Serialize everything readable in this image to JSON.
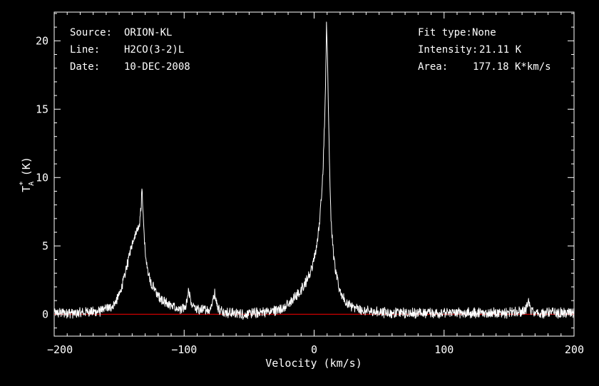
{
  "chart_data": {
    "type": "line",
    "xlabel": "Velocity (km/s)",
    "ylabel_main": "T",
    "ylabel_sub": "A",
    "ylabel_sup": "*",
    "ylabel_unit": "(K)",
    "xlim": [
      -200,
      200
    ],
    "ylim": [
      -1.6,
      22.1
    ],
    "x_ticks": [
      -200,
      -100,
      0,
      100,
      200
    ],
    "x_tick_labels": [
      "−200",
      "−100",
      "0",
      "100",
      "200"
    ],
    "y_ticks": [
      0,
      5,
      10,
      15,
      20
    ],
    "y_tick_labels": [
      "0",
      "5",
      "10",
      "15",
      "20"
    ],
    "x_minor_step": 10,
    "y_minor_step": 1,
    "grid": false,
    "baseline": 0,
    "colors": {
      "background": "#000000",
      "axes": "#ffffff",
      "spectrum": "#ffffff",
      "baseline": "#ff0000",
      "text": "#ffffff"
    },
    "info_left": [
      {
        "label": "Source:",
        "value": "ORION-KL"
      },
      {
        "label": "Line:",
        "value": "H2CO(3-2)L"
      },
      {
        "label": "Date:",
        "value": "10-DEC-2008"
      }
    ],
    "info_right": [
      {
        "label": "Fit type:",
        "value": "None"
      },
      {
        "label": "Intensity:",
        "value": "21.11 K"
      },
      {
        "label": "Area:",
        "value": "177.18 K*km/s"
      }
    ],
    "series": [
      {
        "x": [
          -200,
          -180,
          -165,
          -155,
          -150,
          -147,
          -144,
          -141,
          -139,
          -137,
          -135,
          -134,
          -133,
          -132.5,
          -132,
          -131,
          -130,
          -128,
          -125,
          -122,
          -119,
          -116,
          -113,
          -110,
          -106,
          -102,
          -99,
          -97.5,
          -96.5,
          -95,
          -92,
          -89,
          -86,
          -83,
          -80,
          -78,
          -76.5,
          -75.5,
          -74.5,
          -73,
          -71,
          -68,
          -65,
          -55,
          -45,
          -35,
          -30,
          -25,
          -20,
          -15,
          -10,
          -5,
          -2,
          0,
          2,
          4,
          5.5,
          7,
          8,
          9,
          9.5,
          10,
          11,
          12,
          13,
          15,
          17,
          19,
          21,
          23,
          26,
          30,
          35,
          42,
          50,
          60,
          70,
          80,
          90,
          100,
          110,
          120,
          130,
          140,
          150,
          155,
          160,
          163,
          164,
          165,
          166,
          167,
          170,
          180,
          190,
          200
        ],
        "y": [
          0.1,
          0.1,
          0.2,
          0.6,
          1.4,
          2.3,
          3.5,
          4.8,
          5.6,
          6.1,
          6.4,
          6.9,
          8.1,
          9.0,
          8.2,
          6.3,
          4.5,
          3.0,
          2.2,
          1.7,
          1.3,
          1.0,
          0.8,
          0.6,
          0.45,
          0.3,
          0.5,
          1.0,
          1.7,
          0.9,
          0.4,
          0.3,
          0.3,
          0.3,
          0.45,
          0.9,
          1.6,
          1.3,
          0.7,
          0.35,
          0.25,
          0.15,
          0.1,
          0.0,
          0.1,
          0.2,
          0.3,
          0.45,
          0.7,
          1.2,
          1.8,
          2.6,
          3.3,
          4.0,
          5.0,
          6.5,
          8.5,
          11.0,
          14.0,
          18.0,
          21.11,
          20.0,
          15.0,
          10.5,
          7.0,
          4.2,
          2.8,
          2.0,
          1.5,
          1.1,
          0.8,
          0.5,
          0.35,
          0.2,
          0.15,
          0.1,
          0.1,
          0.1,
          0.1,
          0.1,
          0.1,
          0.1,
          0.1,
          0.1,
          0.1,
          0.15,
          0.2,
          0.3,
          0.6,
          0.9,
          0.5,
          0.25,
          0.1,
          0.1,
          0.1,
          0.1
        ]
      }
    ]
  }
}
